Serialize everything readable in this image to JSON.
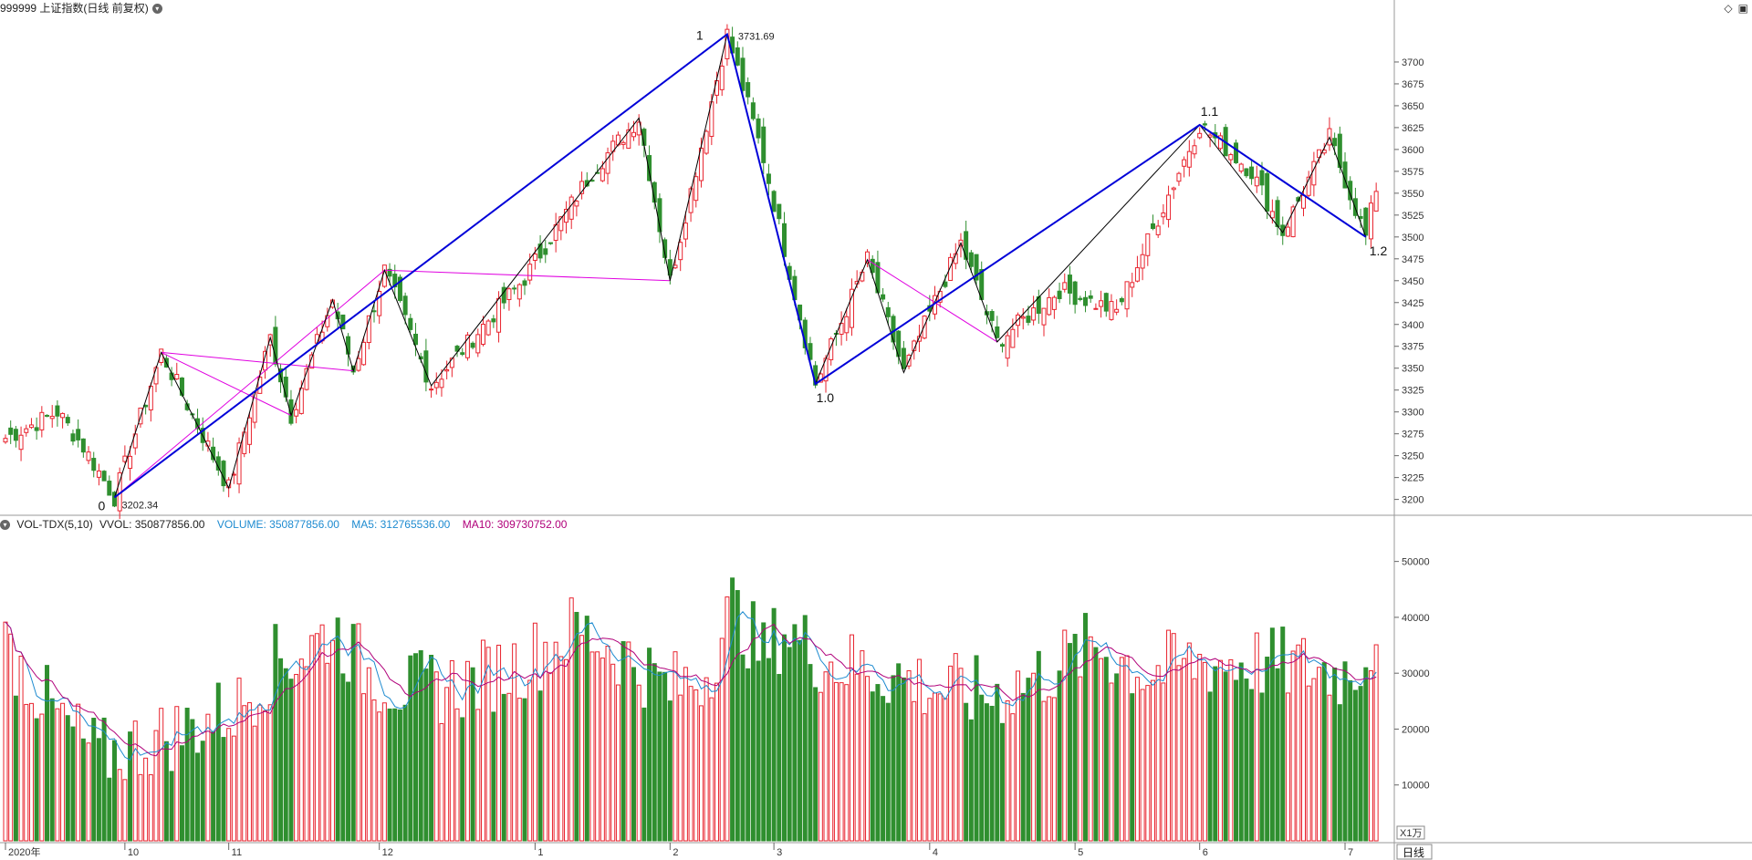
{
  "header": {
    "title": "999999 上证指数(日线 前复权)",
    "icons": [
      "diamond-icon",
      "panel-icon"
    ]
  },
  "volume_header": {
    "indicator": "VOL-TDX(5,10)",
    "vvol": "VVOL: 350877856.00",
    "volume": "VOLUME: 350877856.00",
    "ma5": "MA5: 312765536.00",
    "ma10": "MA10: 309730752.00"
  },
  "colors": {
    "up": "#e8232e",
    "down": "#2f8f2f",
    "wave_major": "#0000d8",
    "wave_minor": "#000000",
    "wave_guide": "#e000e0",
    "ma5": "#1e8bd0",
    "ma10": "#b0007a"
  },
  "labels": {
    "wave_0": "0",
    "wave_1": "1",
    "wave_1_0": "1.0",
    "wave_1_1": "1.1",
    "wave_1_2": "1.2",
    "low_price": "3202.34",
    "high_price": "3731.69",
    "vol_unit": "X1万",
    "period": "日线"
  },
  "chart_data": [
    {
      "type": "candlestick",
      "title": "999999 上证指数(日线 前复权)",
      "ylim": [
        3185,
        3750
      ],
      "yticks": [
        3200,
        3225,
        3250,
        3275,
        3300,
        3325,
        3350,
        3375,
        3400,
        3425,
        3450,
        3475,
        3500,
        3525,
        3550,
        3575,
        3600,
        3625,
        3650,
        3675,
        3700
      ],
      "x_month_labels": [
        {
          "label": "2020年",
          "index": 0
        },
        {
          "label": "10",
          "index": 23
        },
        {
          "label": "11",
          "index": 43
        },
        {
          "label": "12",
          "index": 72
        },
        {
          "label": "1",
          "index": 102
        },
        {
          "label": "2",
          "index": 128
        },
        {
          "label": "3",
          "index": 148
        },
        {
          "label": "4",
          "index": 178
        },
        {
          "label": "5",
          "index": 206
        },
        {
          "label": "6",
          "index": 230
        },
        {
          "label": "7",
          "index": 258
        }
      ],
      "count": 265,
      "anchors": [
        [
          0,
          3270
        ],
        [
          10,
          3300
        ],
        [
          15,
          3260
        ],
        [
          21,
          3202.34
        ],
        [
          30,
          3368
        ],
        [
          43,
          3213
        ],
        [
          51,
          3385
        ],
        [
          55,
          3296
        ],
        [
          63,
          3428
        ],
        [
          67,
          3347
        ],
        [
          73,
          3462
        ],
        [
          82,
          3330
        ],
        [
          100,
          3453
        ],
        [
          113,
          3575
        ],
        [
          122,
          3636
        ],
        [
          128,
          3450
        ],
        [
          139,
          3731.69
        ],
        [
          146,
          3590
        ],
        [
          156,
          3332
        ],
        [
          166,
          3474
        ],
        [
          173,
          3345
        ],
        [
          184,
          3493
        ],
        [
          191,
          3380
        ],
        [
          203,
          3440
        ],
        [
          214,
          3415
        ],
        [
          230,
          3628
        ],
        [
          240,
          3575
        ],
        [
          246,
          3505
        ],
        [
          255,
          3614
        ],
        [
          262,
          3500
        ],
        [
          264,
          3557
        ]
      ],
      "annotations": [
        {
          "text": "0",
          "x_index": 21,
          "y": 3202.34
        },
        {
          "text": "3202.34",
          "x_index": 21,
          "y": 3202.34
        },
        {
          "text": "1",
          "x_index": 139,
          "y": 3731.69
        },
        {
          "text": "3731.69",
          "x_index": 139,
          "y": 3731.69
        },
        {
          "text": "1.0",
          "x_index": 156,
          "y": 3332
        },
        {
          "text": "1.1",
          "x_index": 230,
          "y": 3628
        },
        {
          "text": "1.2",
          "x_index": 262,
          "y": 3500
        }
      ],
      "wave_major": [
        [
          21,
          3202.34
        ],
        [
          139,
          3731.69
        ],
        [
          156,
          3332
        ],
        [
          230,
          3628
        ],
        [
          262,
          3500
        ]
      ],
      "wave_minor": [
        [
          21,
          3202.34
        ],
        [
          30,
          3368
        ],
        [
          43,
          3213
        ],
        [
          51,
          3385
        ],
        [
          55,
          3296
        ],
        [
          63,
          3428
        ],
        [
          67,
          3347
        ],
        [
          73,
          3462
        ],
        [
          82,
          3330
        ],
        [
          122,
          3636
        ],
        [
          128,
          3450
        ],
        [
          139,
          3731.69
        ],
        [
          156,
          3332
        ],
        [
          166,
          3474
        ],
        [
          173,
          3345
        ],
        [
          184,
          3493
        ],
        [
          191,
          3380
        ],
        [
          230,
          3628
        ],
        [
          246,
          3505
        ],
        [
          255,
          3614
        ],
        [
          262,
          3500
        ]
      ],
      "wave_guide": [
        [
          [
            21,
            3202.34
          ],
          [
            73,
            3462
          ],
          [
            128,
            3450
          ]
        ],
        [
          [
            30,
            3368
          ],
          [
            67,
            3347
          ]
        ],
        [
          [
            30,
            3368
          ],
          [
            55,
            3296
          ]
        ],
        [
          [
            166,
            3474
          ],
          [
            191,
            3380
          ]
        ]
      ]
    },
    {
      "type": "bar",
      "title": "VOL-TDX(5,10)",
      "ylim": [
        0,
        55000
      ],
      "yticks": [
        10000,
        20000,
        30000,
        40000,
        50000
      ],
      "unit": "X1万",
      "anchors": [
        [
          0,
          35000
        ],
        [
          10,
          22000
        ],
        [
          18,
          15000
        ],
        [
          25,
          17000
        ],
        [
          35,
          20000
        ],
        [
          45,
          24000
        ],
        [
          52,
          32000
        ],
        [
          58,
          34000
        ],
        [
          63,
          38000
        ],
        [
          70,
          30000
        ],
        [
          78,
          27000
        ],
        [
          88,
          28000
        ],
        [
          100,
          32000
        ],
        [
          110,
          38000
        ],
        [
          118,
          34000
        ],
        [
          128,
          27000
        ],
        [
          135,
          30000
        ],
        [
          140,
          42000
        ],
        [
          146,
          33000
        ],
        [
          150,
          38000
        ],
        [
          158,
          32000
        ],
        [
          170,
          30000
        ],
        [
          180,
          27000
        ],
        [
          190,
          26000
        ],
        [
          200,
          30000
        ],
        [
          210,
          35000
        ],
        [
          220,
          30000
        ],
        [
          230,
          32000
        ],
        [
          240,
          32000
        ],
        [
          250,
          31000
        ],
        [
          258,
          30000
        ],
        [
          264,
          35087
        ]
      ],
      "series": [
        {
          "name": "MA5",
          "window": 5
        },
        {
          "name": "MA10",
          "window": 10
        }
      ]
    }
  ]
}
